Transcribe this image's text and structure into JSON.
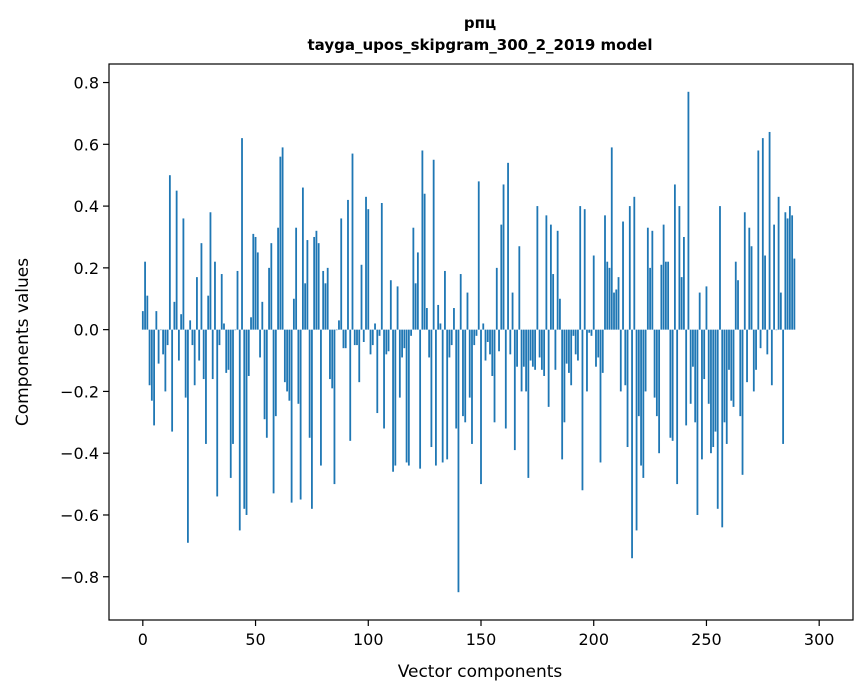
{
  "chart_data": {
    "type": "bar",
    "title": "рпц",
    "subtitle": "tayga_upos_skipgram_300_2_2019 model",
    "xlabel": "Vector components",
    "ylabel": "Components values",
    "xlim": [
      -15,
      315
    ],
    "ylim": [
      -0.94,
      0.86
    ],
    "xticks": [
      0,
      50,
      100,
      150,
      200,
      250,
      300
    ],
    "yticks": [
      -0.8,
      -0.6,
      -0.4,
      -0.2,
      0.0,
      0.2,
      0.4,
      0.6,
      0.8
    ],
    "ytick_labels": [
      "−0.8",
      "−0.6",
      "−0.4",
      "−0.2",
      "0.0",
      "0.2",
      "0.4",
      "0.6",
      "0.8"
    ],
    "grid": false,
    "bar_color": "#1f77b4",
    "values": [
      0.06,
      0.22,
      0.11,
      -0.18,
      -0.23,
      -0.31,
      0.06,
      -0.11,
      0.0,
      -0.08,
      -0.2,
      -0.05,
      0.5,
      -0.33,
      0.09,
      0.45,
      -0.1,
      0.05,
      0.36,
      -0.22,
      -0.69,
      0.03,
      -0.05,
      -0.18,
      0.17,
      -0.1,
      0.28,
      -0.16,
      -0.37,
      0.11,
      0.38,
      -0.16,
      0.22,
      -0.54,
      -0.05,
      0.18,
      0.02,
      -0.14,
      -0.13,
      -0.48,
      -0.37,
      0.0,
      0.19,
      -0.65,
      0.62,
      -0.58,
      -0.6,
      -0.15,
      0.04,
      0.31,
      0.3,
      0.25,
      -0.09,
      0.09,
      -0.29,
      -0.35,
      0.2,
      0.28,
      -0.53,
      -0.28,
      0.33,
      0.56,
      0.59,
      -0.17,
      -0.2,
      -0.23,
      -0.56,
      0.1,
      0.33,
      -0.24,
      -0.55,
      0.46,
      0.15,
      0.29,
      -0.35,
      -0.58,
      0.3,
      0.32,
      0.28,
      -0.44,
      0.19,
      0.15,
      0.2,
      -0.16,
      -0.19,
      -0.5,
      0.0,
      0.03,
      0.36,
      -0.06,
      -0.06,
      0.42,
      -0.36,
      0.57,
      -0.05,
      -0.05,
      -0.17,
      0.21,
      -0.04,
      0.43,
      0.39,
      -0.08,
      -0.05,
      0.02,
      -0.27,
      -0.02,
      0.41,
      -0.32,
      -0.08,
      -0.07,
      0.16,
      -0.46,
      -0.44,
      0.14,
      -0.22,
      -0.09,
      -0.06,
      -0.43,
      -0.44,
      -0.02,
      0.33,
      0.15,
      0.25,
      -0.45,
      0.58,
      0.44,
      0.07,
      -0.09,
      -0.38,
      0.55,
      -0.44,
      0.08,
      0.02,
      -0.43,
      0.19,
      -0.42,
      -0.09,
      -0.05,
      0.07,
      -0.32,
      -0.85,
      0.18,
      -0.28,
      -0.3,
      0.12,
      -0.22,
      -0.37,
      -0.05,
      -0.02,
      0.48,
      -0.5,
      0.02,
      -0.1,
      -0.04,
      -0.08,
      -0.15,
      -0.3,
      0.2,
      -0.07,
      0.34,
      0.47,
      -0.32,
      0.54,
      -0.08,
      0.12,
      -0.39,
      -0.12,
      0.27,
      -0.2,
      -0.12,
      -0.2,
      -0.48,
      -0.1,
      -0.12,
      -0.13,
      0.4,
      -0.09,
      -0.13,
      -0.15,
      0.37,
      -0.25,
      0.34,
      0.18,
      -0.13,
      0.32,
      0.1,
      -0.42,
      -0.3,
      -0.11,
      -0.14,
      -0.18,
      -0.02,
      -0.08,
      -0.1,
      0.4,
      -0.52,
      0.39,
      -0.2,
      -0.01,
      -0.02,
      0.24,
      -0.12,
      -0.09,
      -0.43,
      -0.14,
      0.37,
      0.22,
      0.2,
      0.59,
      0.12,
      0.13,
      0.17,
      -0.2,
      0.35,
      -0.18,
      -0.38,
      0.4,
      -0.74,
      0.43,
      -0.65,
      -0.28,
      -0.44,
      -0.48,
      -0.2,
      0.33,
      0.2,
      0.32,
      -0.22,
      -0.28,
      -0.4,
      0.21,
      0.34,
      0.22,
      0.22,
      -0.35,
      -0.36,
      0.47,
      -0.5,
      0.4,
      0.17,
      0.3,
      -0.31,
      0.77,
      -0.24,
      -0.12,
      -0.3,
      -0.6,
      0.12,
      -0.42,
      -0.16,
      0.14,
      -0.24,
      -0.4,
      -0.38,
      -0.33,
      -0.58,
      0.4,
      -0.64,
      -0.3,
      -0.37,
      -0.13,
      -0.23,
      -0.25,
      0.22,
      0.16,
      -0.28,
      -0.47,
      0.38,
      -0.17,
      0.33,
      0.27,
      -0.2,
      -0.13,
      0.58,
      -0.06,
      0.62,
      0.24,
      -0.08,
      0.64,
      -0.18,
      0.34,
      0.0,
      0.43,
      0.12,
      -0.37,
      0.38,
      0.36,
      0.4,
      0.37,
      0.23
    ]
  }
}
